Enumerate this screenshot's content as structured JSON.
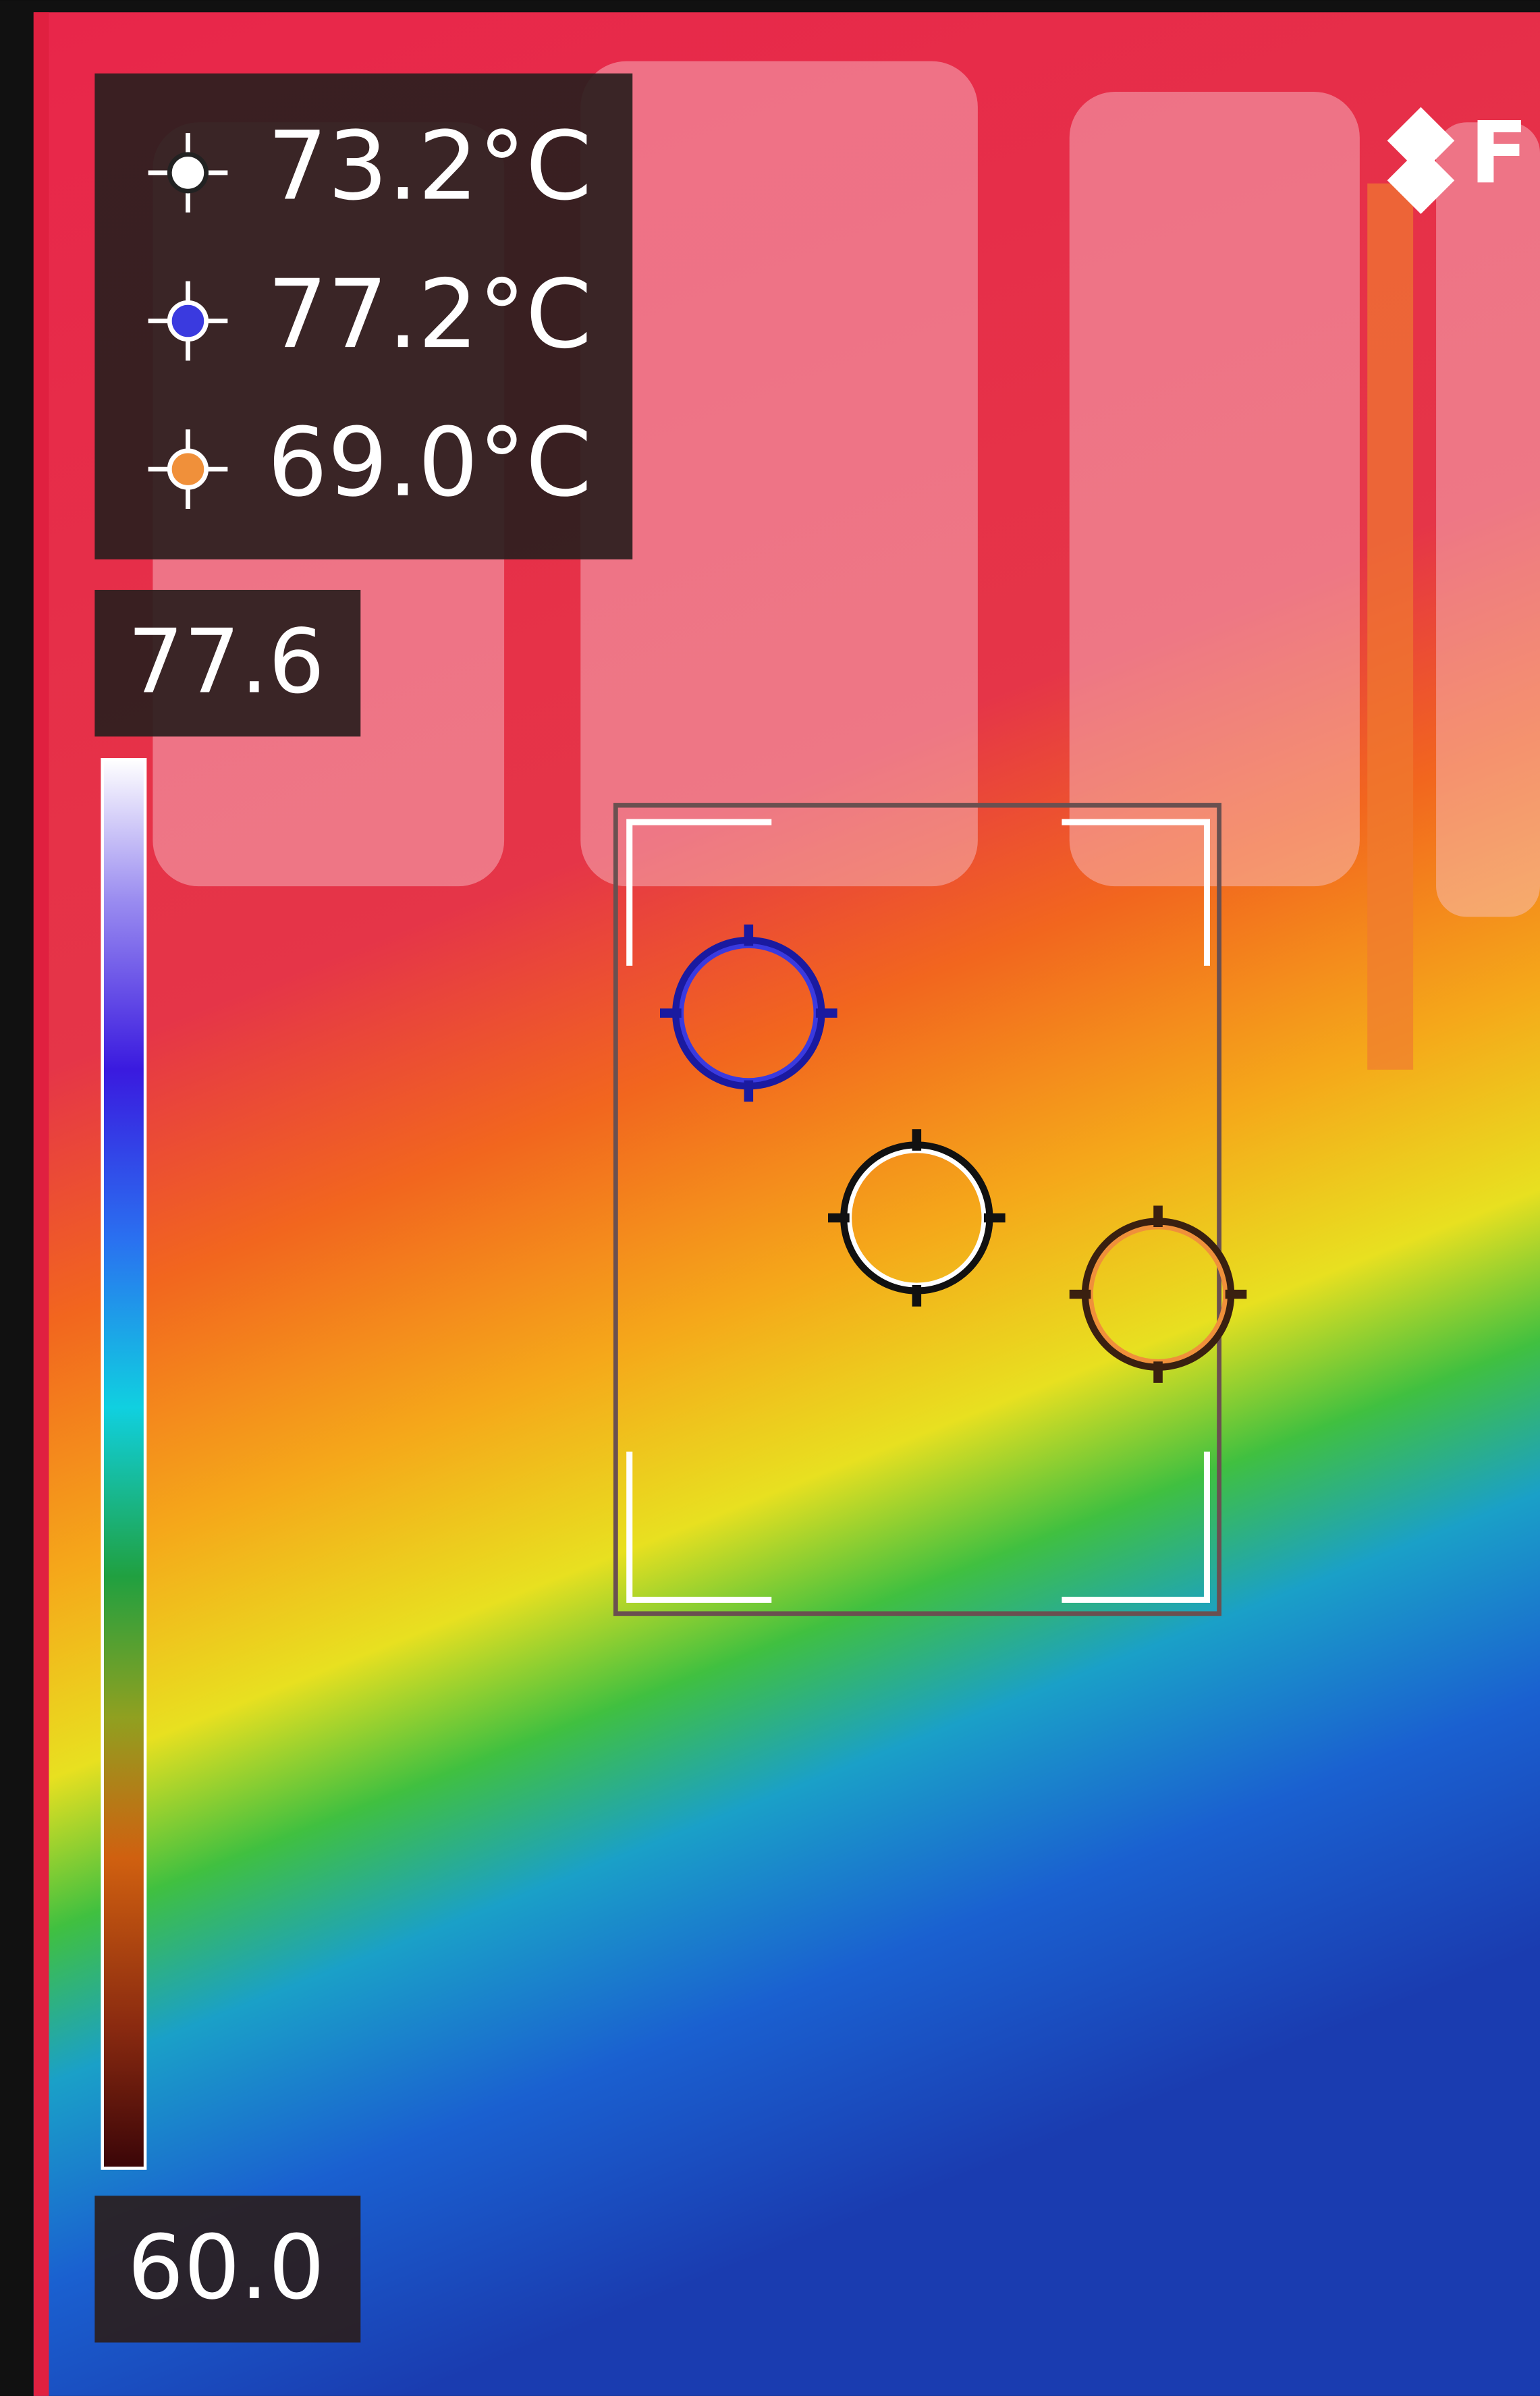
{
  "readings": [
    {
      "label": "73.2°C",
      "color": "#ffffff"
    },
    {
      "label": "77.2°C",
      "color": "#3a3adf"
    },
    {
      "label": "69.0°C",
      "color": "#f0903a"
    }
  ],
  "scale": {
    "max": "77.6",
    "min": "60.0"
  },
  "brand": "F"
}
